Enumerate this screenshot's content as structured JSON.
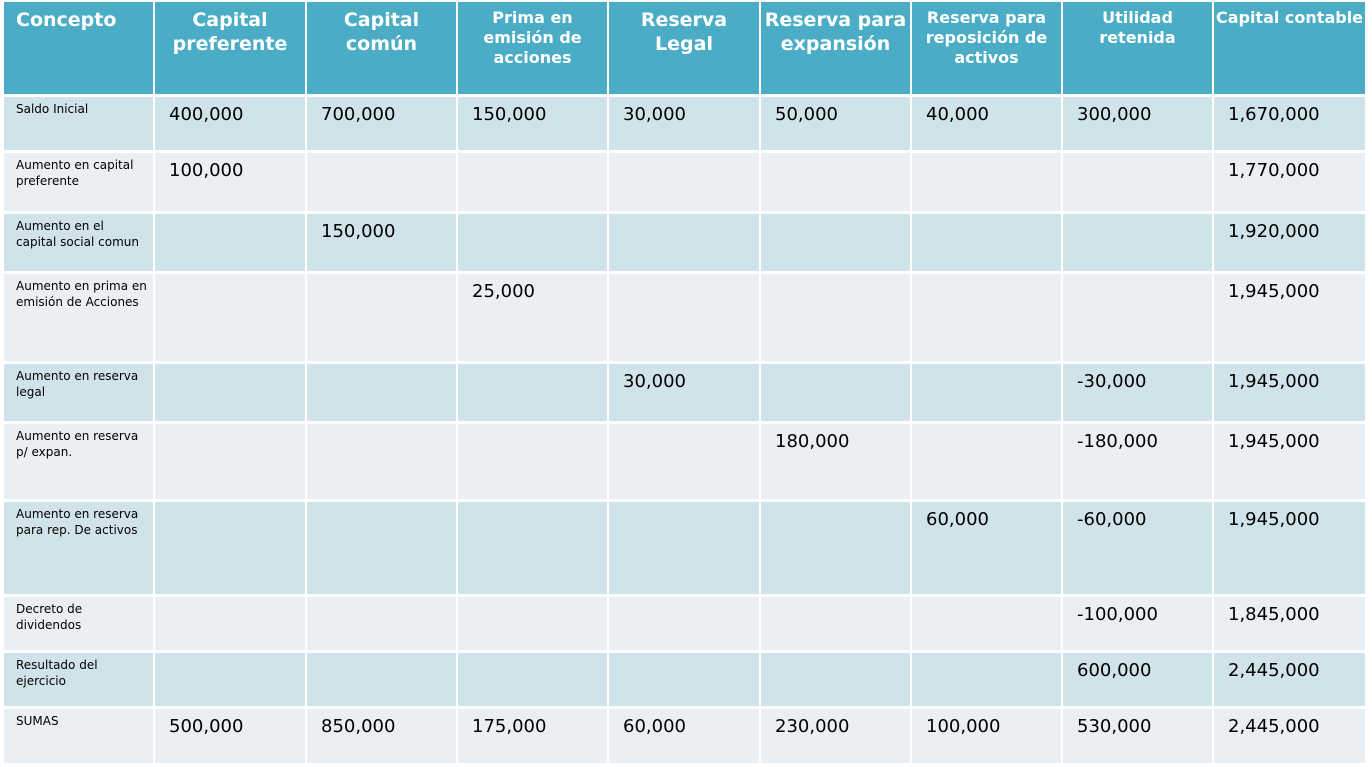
{
  "headers": [
    "Concepto",
    "Capital preferente",
    "Capital común",
    "Prima en emisión de acciones",
    "Reserva Legal",
    "Reserva para expansión",
    "Reserva para reposición de activos",
    "Utilidad retenida",
    "Capital contable"
  ],
  "rows": [
    {
      "concept": "Saldo Inicial",
      "values": [
        "400,000",
        "700,000",
        "150,000",
        "30,000",
        "50,000",
        "40,000",
        "300,000",
        "1,670,000"
      ]
    },
    {
      "concept": "Aumento en capital preferente",
      "values": [
        "100,000",
        "",
        "",
        "",
        "",
        "",
        "",
        "1,770,000"
      ]
    },
    {
      "concept": "Aumento en el capital social comun",
      "values": [
        "",
        "150,000",
        "",
        "",
        "",
        "",
        "",
        "1,920,000"
      ]
    },
    {
      "concept": "Aumento en prima en emisión de Acciones",
      "values": [
        "",
        "",
        "25,000",
        "",
        "",
        "",
        "",
        "1,945,000"
      ]
    },
    {
      "concept": "Aumento en reserva legal",
      "values": [
        "",
        "",
        "",
        "30,000",
        "",
        "",
        "-30,000",
        "1,945,000"
      ]
    },
    {
      "concept": "Aumento en reserva p/ expan.",
      "values": [
        "",
        "",
        "",
        "",
        "180,000",
        "",
        "-180,000",
        "1,945,000"
      ]
    },
    {
      "concept": "Aumento en reserva para rep. De activos",
      "values": [
        "",
        "",
        "",
        "",
        "",
        "60,000",
        "-60,000",
        "1,945,000"
      ]
    },
    {
      "concept": "Decreto de dividendos",
      "values": [
        "",
        "",
        "",
        "",
        "",
        "",
        "-100,000",
        "1,845,000"
      ]
    },
    {
      "concept": "Resultado del ejercicio",
      "values": [
        "",
        "",
        "",
        "",
        "",
        "",
        "600,000",
        "2,445,000"
      ]
    },
    {
      "concept": "SUMAS",
      "values": [
        "500,000",
        "850,000",
        "175,000",
        "60,000",
        "230,000",
        "100,000",
        "530,000",
        "2,445,000"
      ]
    }
  ],
  "colors": {
    "header_bg": "#4bacc6",
    "row_dark": "#d0e3ea",
    "row_light": "#e9eff3"
  }
}
